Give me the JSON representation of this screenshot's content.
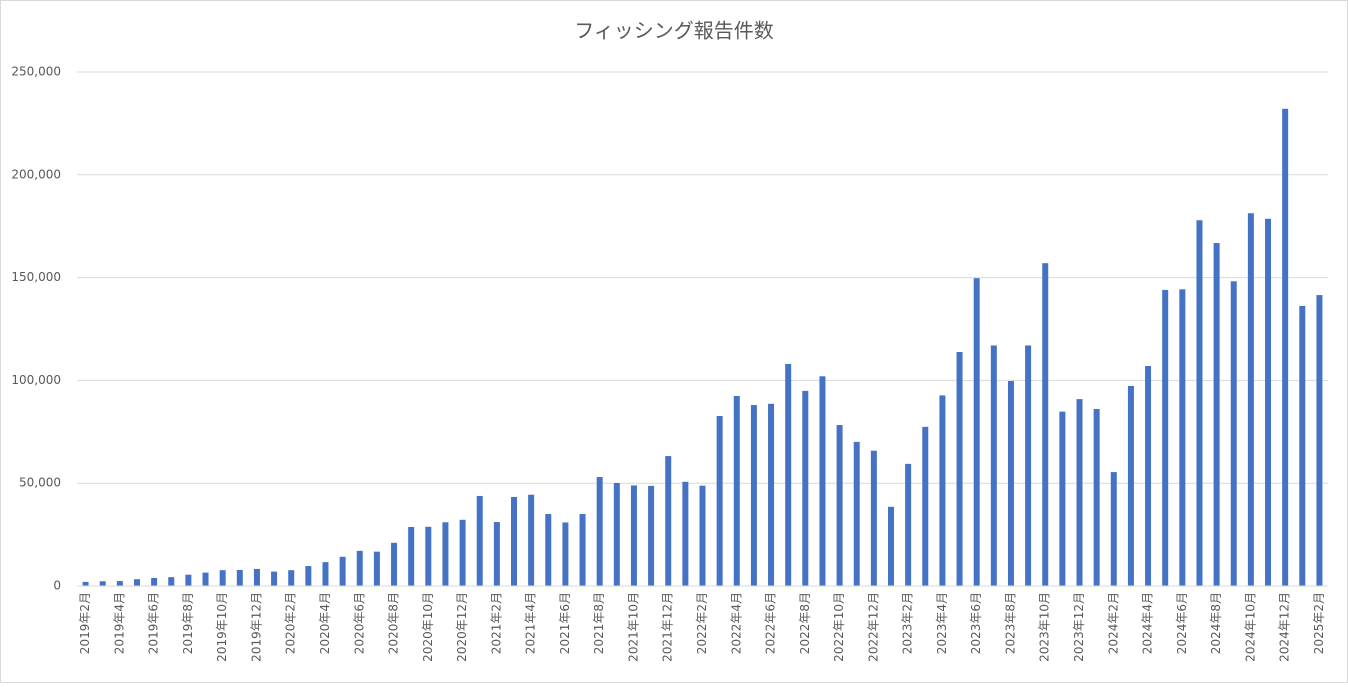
{
  "chart_data": {
    "type": "bar",
    "title": "フィッシング報告件数",
    "categories": [
      "2019年2月",
      null,
      "2019年4月",
      null,
      "2019年6月",
      null,
      "2019年8月",
      null,
      "2019年10月",
      null,
      "2019年12月",
      null,
      "2020年2月",
      null,
      "2020年4月",
      null,
      "2020年6月",
      null,
      "2020年8月",
      null,
      "2020年10月",
      null,
      "2020年12月",
      null,
      "2021年2月",
      null,
      "2021年4月",
      null,
      "2021年6月",
      null,
      "2021年8月",
      null,
      "2021年10月",
      null,
      "2021年12月",
      null,
      "2022年2月",
      null,
      "2022年4月",
      null,
      "2022年6月",
      null,
      "2022年8月",
      null,
      "2022年10月",
      null,
      "2022年12月",
      null,
      "2023年2月",
      null,
      "2023年4月",
      null,
      "2023年6月",
      null,
      "2023年8月",
      null,
      "2023年10月",
      null,
      "2023年12月",
      null,
      "2024年2月",
      null,
      "2024年4月",
      null,
      "2024年6月",
      null,
      "2024年8月",
      null,
      "2024年10月",
      null,
      "2024年12月",
      null,
      "2025年2月"
    ],
    "values": [
      2000,
      2300,
      2400,
      3300,
      3900,
      4300,
      5500,
      6500,
      7700,
      7800,
      8300,
      7000,
      7700,
      9700,
      11600,
      14200,
      17100,
      16700,
      21000,
      28700,
      28800,
      31000,
      32200,
      43800,
      31100,
      43300,
      44400,
      35000,
      30900,
      35000,
      53000,
      50100,
      48900,
      48700,
      63200,
      50700,
      48800,
      82700,
      92400,
      88000,
      88600,
      108000,
      94900,
      102000,
      78300,
      70100,
      65800,
      38500,
      59400,
      77400,
      92700,
      113800,
      149700,
      117000,
      99700,
      117000,
      157000,
      84800,
      90900,
      86100,
      55400,
      97300,
      107000,
      144000,
      144300,
      177900,
      166800,
      148200,
      181300,
      178600,
      232100,
      136200,
      141500
    ],
    "color": "#4472c4",
    "ylim": [
      0,
      250000
    ],
    "yticks": [
      0,
      {
        "value": 50000,
        "label": "50,000"
      },
      {
        "value": 100000,
        "label": "100,000"
      },
      {
        "value": 150000,
        "label": "150,000"
      },
      {
        "value": 200000,
        "label": "200,000"
      },
      {
        "value": 250000,
        "label": "250,000"
      }
    ],
    "grid": true
  }
}
